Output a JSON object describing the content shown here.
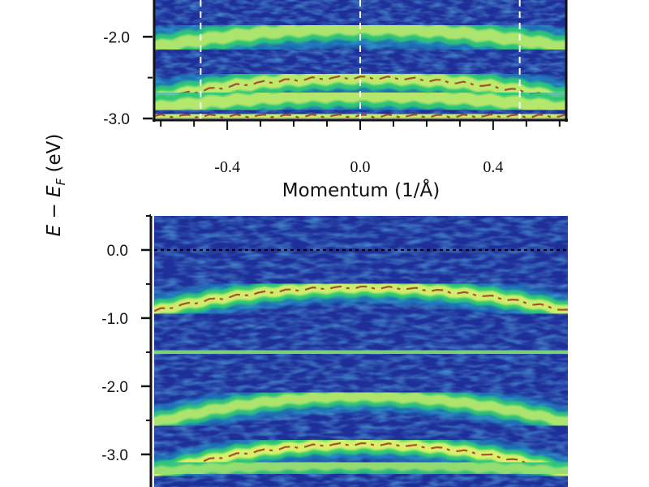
{
  "colors": {
    "background_band": "#1f2f9a",
    "low": "#2456c0",
    "mid_low": "#1fa7c9",
    "mid": "#2fca72",
    "high": "#d8f06a",
    "peak": "#9a3a28",
    "axis": "#111111",
    "marker_line": "#ffffff",
    "fermi_line": "#000000"
  },
  "chart_data": [
    {
      "panel": "top",
      "type": "heatmap",
      "xlabel": "Momentum (1/Å)",
      "ylabel": "E − E_F (eV)",
      "xlim": [
        -0.62,
        0.62
      ],
      "ylim": [
        -3.0,
        -1.55
      ],
      "x_ticks": [
        {
          "value": -0.4,
          "label": "-0.4"
        },
        {
          "value": 0.0,
          "label": "0.0"
        },
        {
          "value": 0.4,
          "label": "0.4"
        }
      ],
      "y_ticks": [
        {
          "value": -2.0,
          "label": "-2.0"
        },
        {
          "value": -3.0,
          "label": "-3.0"
        }
      ],
      "vertical_markers": [
        -0.48,
        0.0,
        0.48
      ],
      "bands": [
        {
          "energy_at_center": -1.9,
          "curvature": 0.6,
          "intensity": 0.75
        },
        {
          "energy_at_center": -2.5,
          "curvature": 0.7,
          "intensity": 0.85
        },
        {
          "energy_at_center": -2.72,
          "curvature": 0.4,
          "intensity": 0.8
        },
        {
          "energy_at_center": -2.97,
          "curvature": 0.0,
          "intensity": 0.9
        }
      ]
    },
    {
      "panel": "bottom",
      "type": "heatmap",
      "xlabel": "",
      "ylabel": "E − E_F (eV)",
      "xlim": [
        -0.62,
        0.62
      ],
      "ylim": [
        -3.55,
        0.5
      ],
      "y_ticks": [
        {
          "value": 0.0,
          "label": "0.0"
        },
        {
          "value": -1.0,
          "label": "-1.0"
        },
        {
          "value": -2.0,
          "label": "-2.0"
        },
        {
          "value": -3.0,
          "label": "-3.0"
        }
      ],
      "fermi_level": 0.0,
      "bands": [
        {
          "energy_at_center": -0.55,
          "curvature": 0.9,
          "intensity": 0.95
        },
        {
          "energy_at_center": -1.5,
          "curvature": 0.0,
          "intensity": 0.45
        },
        {
          "energy_at_center": -2.15,
          "curvature": 1.0,
          "intensity": 0.75
        },
        {
          "energy_at_center": -2.85,
          "curvature": 1.1,
          "intensity": 1.0
        },
        {
          "energy_at_center": -3.15,
          "curvature": 0.3,
          "intensity": 0.6
        }
      ]
    }
  ],
  "labels": {
    "x_axis_title": "Momentum (1/Å)",
    "y_axis_E": "E",
    "y_axis_minus": " − ",
    "y_axis_EF": "E",
    "y_axis_sub": "F",
    "y_axis_unit": " (eV)"
  }
}
